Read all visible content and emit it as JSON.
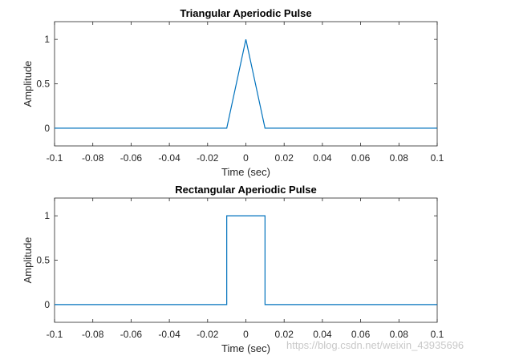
{
  "watermark": "https://blog.csdn.net/weixin_43935696",
  "chart_data": [
    {
      "type": "line",
      "title": "Triangular Aperiodic Pulse",
      "xlabel": "Time (sec)",
      "ylabel": "Amplitude",
      "xlim": [
        -0.1,
        0.1
      ],
      "ylim": [
        -0.2,
        1.2
      ],
      "xticks": [
        -0.1,
        -0.08,
        -0.06,
        -0.04,
        -0.02,
        0,
        0.02,
        0.04,
        0.06,
        0.08,
        0.1
      ],
      "xtick_labels": [
        "-0.1",
        "-0.08",
        "-0.06",
        "-0.04",
        "-0.02",
        "0",
        "0.02",
        "0.04",
        "0.06",
        "0.08",
        "0.1"
      ],
      "yticks": [
        0,
        0.5,
        1
      ],
      "ytick_labels": [
        "0",
        "0.5",
        "1"
      ],
      "grid": false,
      "line_color": "#0072bd",
      "series": [
        {
          "x": [
            -0.1,
            -0.01,
            0,
            0.01,
            0.1
          ],
          "y": [
            0,
            0,
            1,
            0,
            0
          ]
        }
      ]
    },
    {
      "type": "line",
      "title": "Rectangular Aperiodic Pulse",
      "xlabel": "Time (sec)",
      "ylabel": "Amplitude",
      "xlim": [
        -0.1,
        0.1
      ],
      "ylim": [
        -0.2,
        1.2
      ],
      "xticks": [
        -0.1,
        -0.08,
        -0.06,
        -0.04,
        -0.02,
        0,
        0.02,
        0.04,
        0.06,
        0.08,
        0.1
      ],
      "xtick_labels": [
        "-0.1",
        "-0.08",
        "-0.06",
        "-0.04",
        "-0.02",
        "0",
        "0.02",
        "0.04",
        "0.06",
        "0.08",
        "0.1"
      ],
      "yticks": [
        0,
        0.5,
        1
      ],
      "ytick_labels": [
        "0",
        "0.5",
        "1"
      ],
      "grid": false,
      "line_color": "#0072bd",
      "series": [
        {
          "x": [
            -0.1,
            -0.01,
            -0.01,
            0.01,
            0.01,
            0.1
          ],
          "y": [
            0,
            0,
            1,
            1,
            0,
            0
          ]
        }
      ]
    }
  ]
}
